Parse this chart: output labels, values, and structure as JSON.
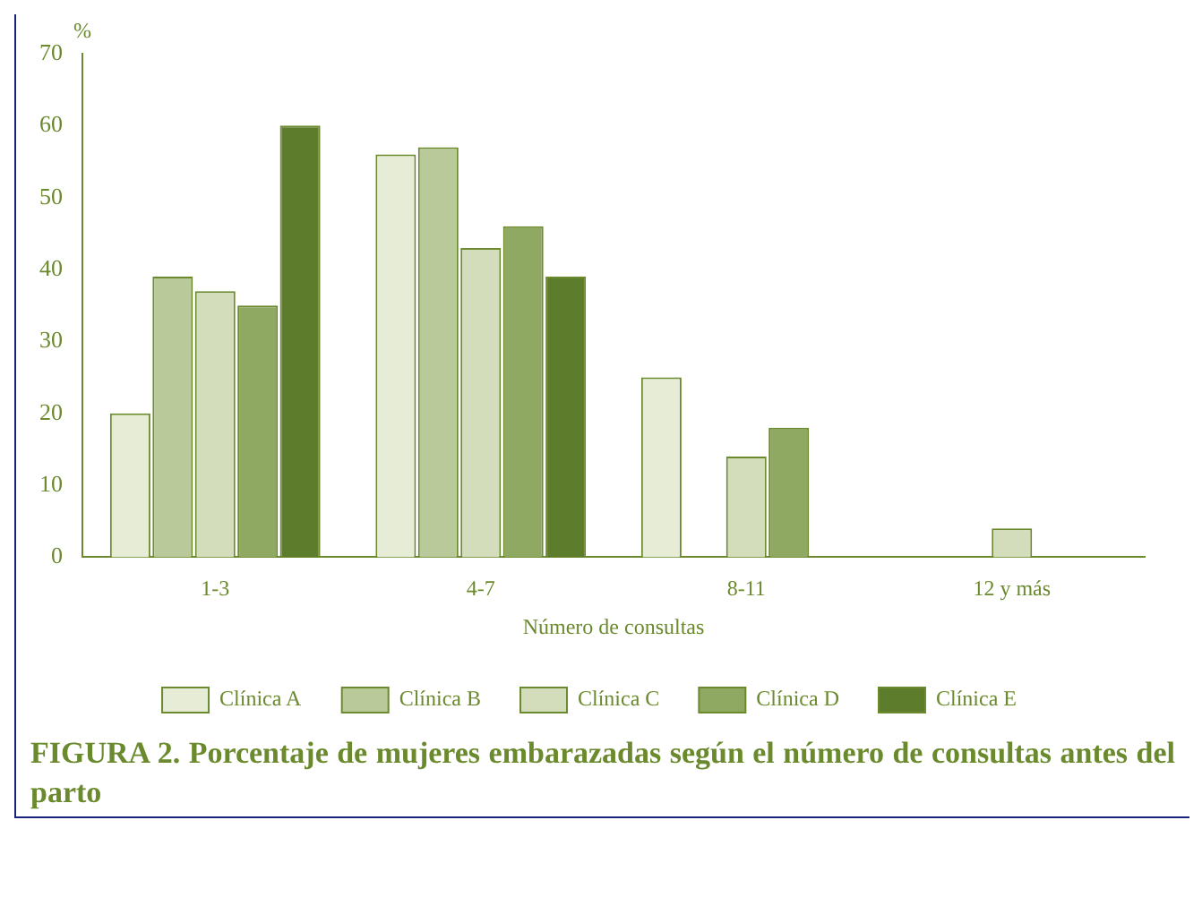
{
  "chart_data": {
    "type": "bar",
    "title": "FIGURA 2. Porcentaje de mujeres embarazadas según el número de consultas antes del parto",
    "xlabel": "Número de consultas",
    "ylabel": "%",
    "categories": [
      "1-3",
      "4-7",
      "8-11",
      "12 y más"
    ],
    "series": [
      {
        "name": "Clínica A",
        "color": "#e6ecd6",
        "values": [
          20,
          56,
          25,
          0
        ]
      },
      {
        "name": "Clínica B",
        "color": "#b9c99a",
        "values": [
          39,
          57,
          0,
          0
        ]
      },
      {
        "name": "Clínica C",
        "color": "#d3ddbc",
        "values": [
          37,
          43,
          14,
          4
        ]
      },
      {
        "name": "Clínica D",
        "color": "#8fa862",
        "values": [
          35,
          46,
          18,
          0
        ]
      },
      {
        "name": "Clínica E",
        "color": "#5e7d2c",
        "values": [
          60,
          39,
          0,
          0
        ]
      }
    ],
    "ylim": [
      0,
      70
    ],
    "yticks": [
      0,
      10,
      20,
      30,
      40,
      50,
      60,
      70
    ],
    "grid": false,
    "legend": "bottom"
  }
}
